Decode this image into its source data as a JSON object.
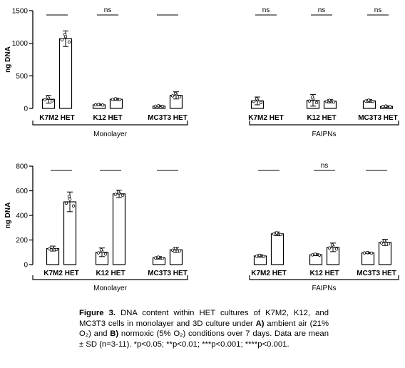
{
  "chart_data": [
    {
      "type": "bar",
      "panel": "A",
      "ylabel": "ng DNA",
      "ylim": [
        0,
        1500
      ],
      "yticks": [
        0,
        500,
        1000,
        1500
      ],
      "categories": [
        "K7M2 HET",
        "K12 HET",
        "MC3T3 HET",
        "K7M2 HET",
        "K12 HET",
        "MC3T3 HET"
      ],
      "groups": [
        {
          "label": "Monolayer",
          "categories": [
            0,
            1,
            2
          ]
        },
        {
          "label": "FAIPNs",
          "categories": [
            3,
            4,
            5
          ]
        }
      ],
      "series": [
        {
          "values": [
            140,
            55,
            35,
            115,
            125,
            115
          ],
          "sd": [
            60,
            10,
            8,
            60,
            90,
            20
          ]
        },
        {
          "values": [
            1070,
            140,
            200,
            0,
            110,
            30
          ],
          "sd": [
            120,
            15,
            55,
            0,
            25,
            10
          ]
        }
      ],
      "annotations": [
        "",
        "ns",
        "",
        "ns",
        "ns",
        "ns"
      ]
    },
    {
      "type": "bar",
      "panel": "B",
      "ylabel": "ng DNA",
      "ylim": [
        0,
        800
      ],
      "yticks": [
        0,
        200,
        400,
        600,
        800
      ],
      "categories": [
        "K7M2 HET",
        "K12 HET",
        "MC3T3 HET",
        "K7M2 HET",
        "K12 HET",
        "MC3T3 HET"
      ],
      "groups": [
        {
          "label": "Monolayer",
          "categories": [
            0,
            1,
            2
          ]
        },
        {
          "label": "FAIPNs",
          "categories": [
            3,
            4,
            5
          ]
        }
      ],
      "series": [
        {
          "values": [
            130,
            100,
            55,
            70,
            80,
            95
          ],
          "sd": [
            20,
            35,
            10,
            10,
            8,
            5
          ]
        },
        {
          "values": [
            510,
            575,
            120,
            250,
            140,
            180
          ],
          "sd": [
            80,
            30,
            20,
            15,
            35,
            25
          ]
        }
      ],
      "annotations": [
        "",
        "",
        "",
        "",
        "ns",
        ""
      ]
    }
  ],
  "caption": {
    "label": "Figure 3.",
    "part1": " DNA content within HET cultures of K7M2, K12, and MC3T3 cells in monolayer and 3D culture under ",
    "a_label": "A)",
    "part2": " ambient air (21% O₂) and ",
    "b_label": "B)",
    "part3": " normoxic (5% O₂) conditions over 7 days. Data are mean ± SD (n=3-11). *p<0.05; **p<0.01; ***p<0.001; ****p<0.001."
  }
}
